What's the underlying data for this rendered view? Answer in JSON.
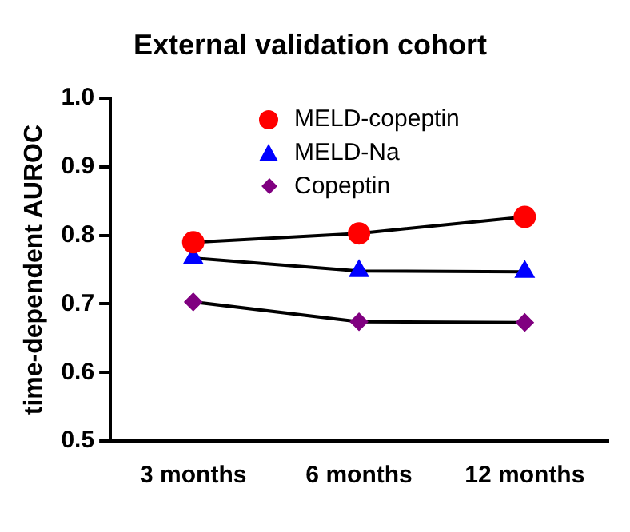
{
  "chart_data": {
    "type": "line",
    "title": "External validation cohort",
    "ylabel": "time-dependent AUROC",
    "categories": [
      "3 months",
      "6 months",
      "12 months"
    ],
    "series": [
      {
        "name": "MELD-copeptin",
        "color": "#ff0000",
        "marker": "circle",
        "values": [
          0.79,
          0.803,
          0.827
        ]
      },
      {
        "name": "MELD-Na",
        "color": "#0000ff",
        "marker": "triangle",
        "values": [
          0.767,
          0.748,
          0.747
        ]
      },
      {
        "name": "Copeptin",
        "color": "#800080",
        "marker": "diamond",
        "values": [
          0.703,
          0.674,
          0.673
        ]
      }
    ],
    "ylim": [
      0.5,
      1.0
    ],
    "yticks": [
      {
        "value": 0.5,
        "label": "0.5"
      },
      {
        "value": 0.6,
        "label": "0.6"
      },
      {
        "value": 0.7,
        "label": "0.7"
      },
      {
        "value": 0.8,
        "label": "0.8"
      },
      {
        "value": 0.9,
        "label": "0.9"
      },
      {
        "value": 1.0,
        "label": "1.0"
      }
    ],
    "grid": false,
    "legend": "top"
  }
}
